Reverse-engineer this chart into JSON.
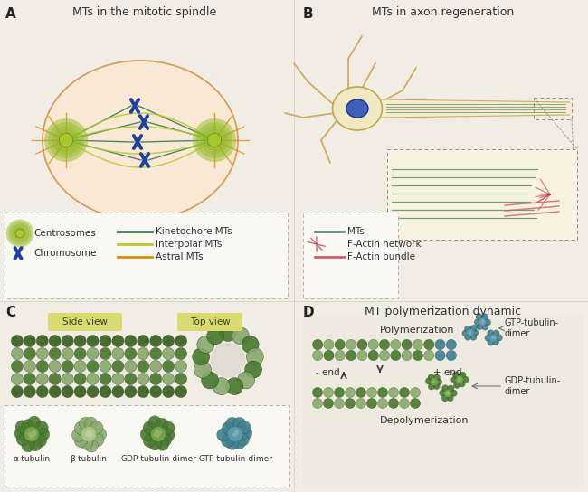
{
  "bg_color": "#f2ede4",
  "panel_A_title": "MTs in the mitotic spindle",
  "panel_B_title": "MTs in axon regeneration",
  "panel_D_title": "MT polymerization dynamic",
  "label_A": "A",
  "label_B": "B",
  "label_C": "C",
  "label_D": "D",
  "cell_fill": "#f9ede0",
  "cell_border": "#d4b87a",
  "kinetochore_color": "#3a7a5a",
  "interpolar_color": "#b5cc30",
  "astral_color": "#d4920a",
  "chromosome_color": "#2040a0",
  "centrosome_fill": "#8aaa20",
  "mt_color": "#5a9070",
  "factin_network_color": "#c04050",
  "factin_bundle_color": "#d06060",
  "neuron_body_fill": "#f0e8c0",
  "neuron_body_border": "#c8b060",
  "nucleus_fill": "#4060c0",
  "axon_fill": "#f5ecd0",
  "legend_dash_color": "#b0b0b0",
  "alpha_color1": "#4a7a30",
  "alpha_color2": "#6a9a50",
  "beta_color1": "#8aaa70",
  "beta_color2": "#b0cc90",
  "gdp_color1": "#4a7a30",
  "gdp_color2": "#6a9a50",
  "gtp_color1": "#408090",
  "gtp_color2": "#60a0b0",
  "side_view_bg": "#d8dc70",
  "top_view_bg": "#d8dc70",
  "font_color": "#303030",
  "panel_C_labels": [
    "α-tubulin",
    "β-tubulin",
    "GDP-tubulin-dimer",
    "GTP-tubulin-dimer"
  ],
  "side_view_label": "Side view",
  "top_view_label": "Top view",
  "polymerization_label": "Polymerization",
  "depolymerization_label": "Depolymerization",
  "minus_end_label": "- end",
  "plus_end_label": "+ end",
  "gtp_dimer_label": "GTP-tubulin-\ndimer",
  "gdp_dimer_label": "GDP-tubulin-\ndimer"
}
